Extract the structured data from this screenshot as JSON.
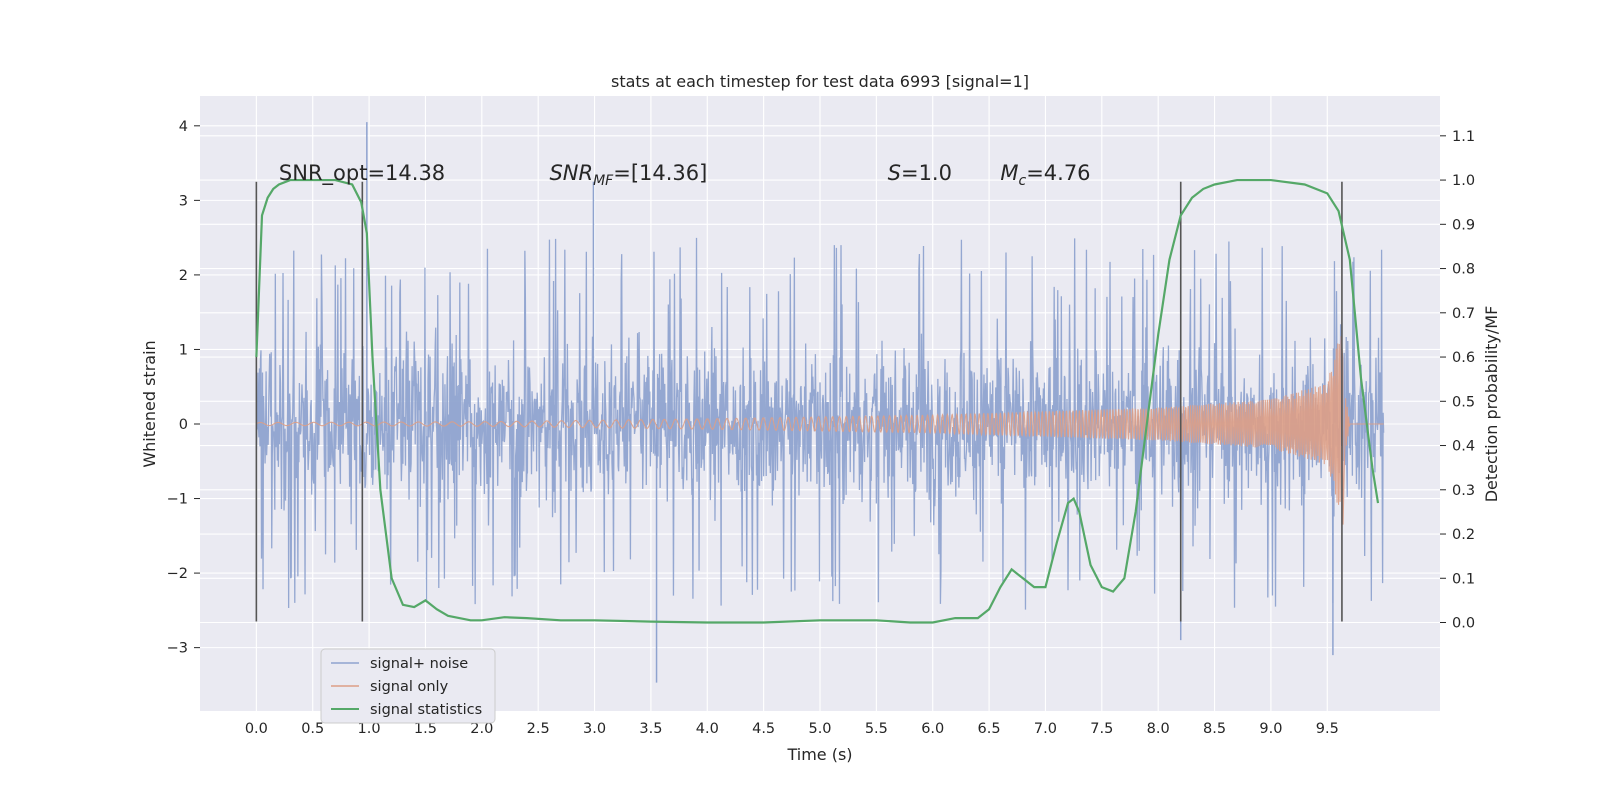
{
  "chart_data": {
    "type": "line",
    "title": "stats at each timestep for test data 6993 [signal=1]",
    "xlabel": "Time (s)",
    "ylabel": "Whitened strain",
    "ylabel_right": "Detection probability/MF",
    "xlim": [
      -0.5,
      10.5
    ],
    "ylim": [
      -3.85,
      4.4
    ],
    "ylim_right": [
      -0.2,
      1.19
    ],
    "xticks": [
      "0.0",
      "0.5",
      "1.0",
      "1.5",
      "2.0",
      "2.5",
      "3.0",
      "3.5",
      "4.0",
      "4.5",
      "5.0",
      "5.5",
      "6.0",
      "6.5",
      "7.0",
      "7.5",
      "8.0",
      "8.5",
      "9.0",
      "9.5"
    ],
    "yticks_left": [
      "−3",
      "−2",
      "−1",
      "0",
      "1",
      "2",
      "3",
      "4"
    ],
    "yticks_right": [
      "0.0",
      "0.1",
      "0.2",
      "0.3",
      "0.4",
      "0.5",
      "0.6",
      "0.7",
      "0.8",
      "0.9",
      "1.0",
      "1.1"
    ],
    "grid": true,
    "legend_placement": "lower-left",
    "annotations": [
      {
        "label": "SNR_opt=14.38",
        "italic_name": false,
        "x": 0.2
      },
      {
        "label_main": "SNR",
        "label_sub": "MF",
        "label_rest": "=[14.36]",
        "x": 2.6
      },
      {
        "label_main": "S",
        "label_sub": "",
        "label_rest": "=1.0",
        "x": 5.6
      },
      {
        "label_main": "M",
        "label_sub": "c",
        "label_rest": "=4.76",
        "x": 6.6
      }
    ],
    "annotation_y": 3.3,
    "vertical_markers_x": [
      0.0,
      0.94,
      8.2,
      9.63
    ],
    "vertical_marker_range": [
      -2.65,
      3.25
    ],
    "series": [
      {
        "name": "signal+ noise",
        "color": "#8fa3cf",
        "kind": "noise",
        "t_start": 0.0,
        "t_end": 10.0,
        "stats": {
          "core_band": [
            -0.9,
            0.9
          ],
          "typical_peak": 2.0,
          "max": 4.05,
          "min": -3.47
        }
      },
      {
        "name": "signal only",
        "color": "#dd9e86",
        "kind": "chirp",
        "t_start": 0.0,
        "t_end": 10.0,
        "envelope": [
          [
            0.0,
            0.02
          ],
          [
            2.0,
            0.03
          ],
          [
            4.0,
            0.07
          ],
          [
            6.0,
            0.12
          ],
          [
            8.0,
            0.22
          ],
          [
            9.0,
            0.33
          ],
          [
            9.5,
            0.55
          ],
          [
            9.62,
            1.25
          ],
          [
            9.66,
            0.4
          ],
          [
            9.7,
            0.0
          ]
        ],
        "min_peak": -1.35
      },
      {
        "name": "signal statistics",
        "color": "#55a868",
        "kind": "curve",
        "axis": "right",
        "x": [
          0.0,
          0.05,
          0.1,
          0.15,
          0.2,
          0.3,
          0.5,
          0.7,
          0.85,
          0.93,
          0.98,
          1.03,
          1.1,
          1.2,
          1.3,
          1.4,
          1.5,
          1.6,
          1.7,
          1.8,
          1.9,
          2.0,
          2.2,
          2.4,
          2.7,
          3.0,
          3.5,
          4.0,
          4.5,
          5.0,
          5.5,
          5.8,
          6.0,
          6.2,
          6.4,
          6.5,
          6.6,
          6.7,
          6.8,
          6.9,
          7.0,
          7.1,
          7.2,
          7.25,
          7.3,
          7.4,
          7.5,
          7.6,
          7.7,
          7.8,
          7.9,
          8.0,
          8.1,
          8.2,
          8.3,
          8.4,
          8.5,
          8.7,
          9.0,
          9.3,
          9.5,
          9.6,
          9.7,
          9.8,
          9.9,
          9.95
        ],
        "y": [
          0.6,
          0.92,
          0.96,
          0.98,
          0.99,
          1.0,
          1.0,
          1.0,
          0.99,
          0.95,
          0.88,
          0.6,
          0.3,
          0.1,
          0.04,
          0.035,
          0.05,
          0.03,
          0.015,
          0.01,
          0.005,
          0.005,
          0.012,
          0.01,
          0.005,
          0.005,
          0.002,
          0.0,
          0.0,
          0.005,
          0.005,
          0.0,
          0.0,
          0.01,
          0.01,
          0.03,
          0.08,
          0.12,
          0.1,
          0.08,
          0.08,
          0.18,
          0.27,
          0.28,
          0.25,
          0.13,
          0.08,
          0.07,
          0.1,
          0.25,
          0.45,
          0.65,
          0.82,
          0.92,
          0.96,
          0.98,
          0.99,
          1.0,
          1.0,
          0.99,
          0.97,
          0.93,
          0.82,
          0.55,
          0.35,
          0.27
        ]
      }
    ]
  },
  "legend": {
    "items": [
      {
        "label": "signal+ noise",
        "color": "#8fa3cf"
      },
      {
        "label": "signal only",
        "color": "#dd9e86"
      },
      {
        "label": "signal statistics",
        "color": "#55a868"
      }
    ]
  },
  "colors": {
    "plot_bg": "#eaeaf2",
    "grid": "#ffffff",
    "marker": "#555555"
  }
}
